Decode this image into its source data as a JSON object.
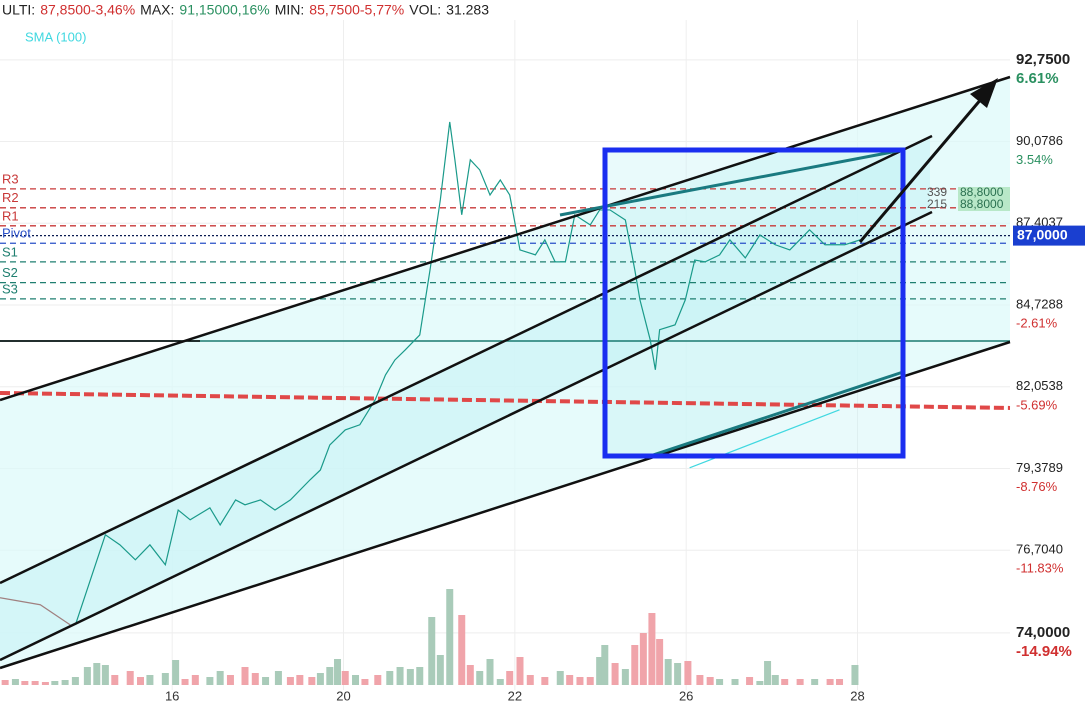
{
  "header": [
    {
      "text": "ULTI:",
      "color": "#222222"
    },
    {
      "text": "87,8500-3,46%",
      "color": "#d03030"
    },
    {
      "text": "MAX:",
      "color": "#222222"
    },
    {
      "text": "91,15000,16%",
      "color": "#2a9060"
    },
    {
      "text": "MIN:",
      "color": "#222222"
    },
    {
      "text": "85,7500-5,77%",
      "color": "#d03030"
    },
    {
      "text": "VOL:",
      "color": "#222222"
    },
    {
      "text": "31.283",
      "color": "#222222"
    }
  ],
  "chart_data": {
    "type": "line",
    "xlim": [
      -2.01,
      9.78
    ],
    "xticks": [
      {
        "value": 0,
        "label": "16"
      },
      {
        "value": 2,
        "label": "20"
      },
      {
        "value": 4,
        "label": "22"
      },
      {
        "value": 6,
        "label": "26"
      },
      {
        "value": 8,
        "label": "28"
      }
    ],
    "ylim": [
      72.13,
      94.71
    ],
    "yticks": [
      {
        "value": 92.75,
        "label": "92,7500"
      },
      {
        "value": 90.0786,
        "label": "90,0786"
      },
      {
        "value": 87.4037,
        "label": "87,4037"
      },
      {
        "value": 84.7288,
        "label": "84,7288"
      },
      {
        "value": 82.0538,
        "label": "82,0538"
      },
      {
        "value": 79.3789,
        "label": "79,3789"
      },
      {
        "value": 76.704,
        "label": "76,7040"
      },
      {
        "value": 74,
        "label": "74,0000"
      }
    ],
    "y2lim": [
      -17.09,
      8.86
    ],
    "y2ticks": [
      {
        "value": 6.61,
        "label": "6.61%"
      },
      {
        "value": 3.54,
        "label": "3.54%"
      },
      {
        "value": -2.61,
        "label": "-2.61%"
      },
      {
        "value": -5.69,
        "label": "-5.69%"
      },
      {
        "value": -8.76,
        "label": "-8.76%"
      },
      {
        "value": -11.83,
        "label": "-11.83%"
      },
      {
        "value": -14.94,
        "label": "-14.94%"
      }
    ],
    "grid": true,
    "series": [
      {
        "color": "#a08080",
        "x": [
          -2.01,
          -1.54,
          -1.19
        ],
        "values": [
          75.15,
          74.92,
          74.26
        ]
      },
      {
        "color": "#1a9a8a",
        "x": [
          -1.13,
          -0.78,
          -0.61,
          -0.43,
          -0.26,
          -0.08,
          0.07,
          0.21,
          0.44,
          0.56,
          0.74,
          0.85,
          1.03,
          1.2,
          1.38,
          1.61,
          1.73,
          1.84,
          2.02,
          2.19,
          2.37,
          2.49,
          2.6,
          2.72,
          2.89,
          3.01,
          3.13,
          3.24,
          3.3,
          3.38,
          3.48,
          3.59,
          3.71,
          3.83,
          3.94,
          4.06,
          4.24,
          4.35,
          4.47,
          4.59,
          4.7,
          4.88,
          4.99,
          5.11,
          5.29,
          5.4,
          5.46,
          5.58,
          5.64,
          5.69,
          5.87,
          5.99,
          6.1,
          6.22,
          6.39,
          6.51,
          6.69,
          6.86,
          7.04,
          7.21,
          7.44,
          7.62,
          7.85,
          8.03
        ],
        "values": [
          74.26,
          77.21,
          76.88,
          76.39,
          76.88,
          76.23,
          78.02,
          77.7,
          78.09,
          77.53,
          78.35,
          78.19,
          78.35,
          78.02,
          78.35,
          79.01,
          79.33,
          80.15,
          80.64,
          80.81,
          81.63,
          82.44,
          82.93,
          83.26,
          83.75,
          85.88,
          88.17,
          90.72,
          89.48,
          87.68,
          89.48,
          89.15,
          88.33,
          88.82,
          88.33,
          86.53,
          86.37,
          86.86,
          86.14,
          86.14,
          87.68,
          87.35,
          87.84,
          87.84,
          87.51,
          85.88,
          84.9,
          83.59,
          82.61,
          83.92,
          84.08,
          84.9,
          86.2,
          86.14,
          86.37,
          86.86,
          86.27,
          87.02,
          86.7,
          86.53,
          87.19,
          86.7,
          86.7,
          86.86
        ]
      },
      {
        "name": "SMA (100)",
        "color": "#40d8e0",
        "x": [
          6.04,
          7.79
        ],
        "values": [
          79.4,
          81.3
        ]
      },
      {
        "color": "#e04848",
        "dash": true,
        "x": [
          -2.01,
          9.78
        ],
        "values": [
          81.85,
          81.36
        ]
      }
    ],
    "levels": [
      {
        "label": "R3",
        "value": 88.53,
        "color": "#c83838"
      },
      {
        "label": "R2",
        "value": 87.91,
        "color": "#c83838"
      },
      {
        "label": "R1",
        "value": 87.32,
        "color": "#c83838"
      },
      {
        "label": "Pivot",
        "value": 86.75,
        "color": "#2a50c8"
      },
      {
        "label": "S1",
        "value": 86.14,
        "color": "#1f7f70"
      },
      {
        "label": "S2",
        "value": 85.46,
        "color": "#1f7f70"
      },
      {
        "label": "S3",
        "value": 84.93,
        "color": "#1f7f70"
      }
    ],
    "hlines": [
      {
        "value": 83.55,
        "color": "#1a7a70"
      }
    ],
    "last": {
      "value": 87,
      "label": "87,0000"
    },
    "annotations": [
      {
        "count": "339",
        "price": "88,8000"
      },
      {
        "count": "215",
        "price": "88,8000"
      }
    ],
    "volume": {
      "vlim": [
        0,
        100
      ],
      "series": [
        {
          "color": "#a9cbb9",
          "x": [
            -1.83,
            -1.37,
            -1.25,
            -1.13,
            -0.99,
            -0.88,
            -0.78,
            -0.26,
            -0.08,
            0.04,
            0.44,
            0.56,
            1.09,
            1.24,
            1.73,
            1.84,
            1.93,
            2.14,
            2.54,
            2.66,
            2.78,
            2.89,
            3.03,
            3.13,
            3.24,
            3.59,
            3.71,
            3.83,
            4.53,
            4.99,
            5.05,
            5.29,
            5.79,
            5.9,
            6.39,
            6.57,
            6.86,
            6.95,
            7.04,
            7.5,
            7.97
          ],
          "values": [
            6,
            4,
            5,
            8,
            18,
            22,
            20,
            10,
            12,
            25,
            8,
            14,
            8,
            14,
            12,
            18,
            26,
            10,
            14,
            18,
            16,
            18,
            68,
            30,
            96,
            14,
            26,
            6,
            14,
            28,
            40,
            16,
            26,
            22,
            6,
            6,
            4,
            24,
            10,
            6,
            20
          ]
        },
        {
          "color": "#f0a4aa",
          "x": [
            -1.95,
            -1.72,
            -1.6,
            -1.48,
            -0.67,
            -0.49,
            -0.37,
            0.15,
            0.27,
            0.68,
            0.85,
            0.97,
            1.38,
            1.49,
            1.63,
            2.02,
            2.25,
            2.4,
            3.38,
            3.48,
            3.94,
            4.06,
            4.18,
            4.35,
            4.64,
            4.76,
            4.88,
            5.17,
            5.4,
            5.5,
            5.6,
            5.69,
            6.02,
            6.16,
            6.28,
            6.74,
            7.15,
            7.33,
            7.68,
            7.79
          ],
          "values": [
            5,
            4,
            4,
            3,
            10,
            14,
            8,
            6,
            10,
            10,
            18,
            12,
            8,
            10,
            8,
            14,
            6,
            10,
            70,
            20,
            14,
            28,
            10,
            8,
            10,
            8,
            8,
            22,
            40,
            52,
            72,
            46,
            24,
            10,
            8,
            8,
            6,
            6,
            6,
            6
          ]
        }
      ]
    }
  }
}
